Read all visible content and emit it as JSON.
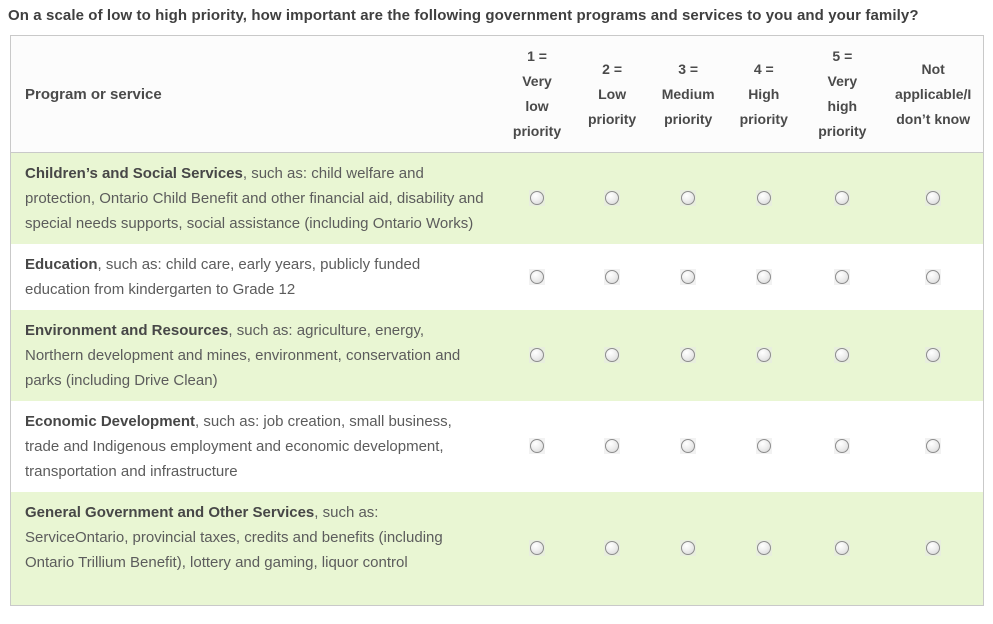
{
  "title": "On a scale of low to high priority, how important are the following government programs and services to you and your family?",
  "colors": {
    "row_alt": "#e9f6d3",
    "border": "#c9c9c9",
    "header_bg": "#fcfcfc",
    "title_color": "#3f3f3f",
    "heading_color": "#4a4a4a",
    "body_color": "#5c5c5c"
  },
  "table": {
    "program_header": "Program or service",
    "scale_headers": [
      "1 =\nVery\nlow\npriority",
      "2 =\nLow\npriority",
      "3 =\nMedium\npriority",
      "4 =\nHigh\npriority",
      "5 =\nVery\nhigh\npriority",
      "Not\napplicable/I\ndon’t know"
    ],
    "all_radios_unchecked": true,
    "rows": [
      {
        "name": "Children’s and Social Services",
        "description": ", such as: child welfare and protection, Ontario Child Benefit and other financial aid, disability and special needs supports, social assistance (including Ontario Works)"
      },
      {
        "name": "Education",
        "description": ", such as: child care, early years, publicly funded education from kindergarten to Grade 12"
      },
      {
        "name": "Environment and Resources",
        "description": ", such as: agriculture, energy, Northern development and mines, environment, conservation and parks (including Drive Clean)"
      },
      {
        "name": "Economic Development",
        "description": ", such as: job creation, small business, trade and Indigenous employment and economic development, transportation and infrastructure"
      },
      {
        "name": "General Government and Other Services",
        "description": ", such as: ServiceOntario, provincial taxes, credits and benefits (including Ontario Trillium Benefit), lottery and gaming, liquor control"
      }
    ]
  }
}
